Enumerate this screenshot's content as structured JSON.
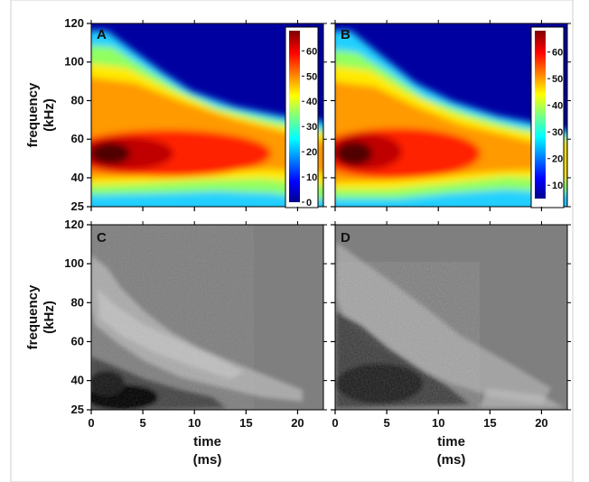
{
  "chart_data": [
    {
      "type": "heatmap",
      "panel_label": "A",
      "colormap": "jet",
      "x": [
        0,
        22.5
      ],
      "ylim": [
        25,
        120
      ],
      "xticks": [
        "0",
        "5",
        "10",
        "15",
        "20"
      ],
      "yticks": [
        "25",
        "40",
        "60",
        "80",
        "100",
        "120"
      ],
      "ylabel": [
        "frequency",
        "(kHz)"
      ],
      "colorbar": {
        "range": [
          0,
          68
        ],
        "ticks": [
          "0",
          "10",
          "20",
          "30",
          "40",
          "50",
          "60"
        ]
      },
      "peak": {
        "time": 2,
        "frequency": 47,
        "value": 68
      },
      "upper_boundary_kHz": [
        [
          0,
          118
        ],
        [
          5,
          100
        ],
        [
          10,
          82
        ],
        [
          15,
          73
        ],
        [
          20,
          66
        ],
        [
          22.5,
          62
        ]
      ]
    },
    {
      "type": "heatmap",
      "panel_label": "B",
      "colormap": "jet",
      "x": [
        0,
        22.5
      ],
      "ylim": [
        25,
        120
      ],
      "xticks": [
        "0",
        "5",
        "10",
        "15",
        "20"
      ],
      "yticks": [
        "25",
        "40",
        "60",
        "80",
        "100",
        "120"
      ],
      "colorbar": {
        "range": [
          5,
          68
        ],
        "ticks": [
          "10",
          "20",
          "30",
          "40",
          "50",
          "60"
        ]
      },
      "peak": {
        "time": 1.5,
        "frequency": 47,
        "value": 68
      },
      "upper_boundary_kHz": [
        [
          0,
          117
        ],
        [
          5,
          95
        ],
        [
          10,
          78
        ],
        [
          15,
          66
        ],
        [
          20,
          58
        ],
        [
          22.5,
          55
        ]
      ]
    },
    {
      "type": "heatmap",
      "panel_label": "C",
      "colormap": "gray",
      "x": [
        0,
        22.5
      ],
      "ylim": [
        25,
        120
      ],
      "xticks": [
        "0",
        "5",
        "10",
        "15",
        "20"
      ],
      "yticks": [
        "25",
        "40",
        "60",
        "80",
        "100",
        "120"
      ],
      "xlabel": [
        "time",
        "(ms)"
      ],
      "ylabel": [
        "frequency",
        "(kHz)"
      ],
      "dark_region": {
        "time": 2.5,
        "frequency": 28
      },
      "light_band": [
        [
          1,
          85
        ],
        [
          7,
          50
        ],
        [
          13,
          38
        ],
        [
          17,
          32
        ]
      ]
    },
    {
      "type": "heatmap",
      "panel_label": "D",
      "colormap": "gray",
      "x": [
        0,
        22.5
      ],
      "ylim": [
        25,
        120
      ],
      "xticks": [
        "0",
        "5",
        "10",
        "15",
        "20"
      ],
      "yticks": [
        "25",
        "40",
        "60",
        "80",
        "100",
        "120"
      ],
      "xlabel": [
        "time",
        "(ms)"
      ],
      "dark_region": {
        "time": 3,
        "frequency": 35
      },
      "light_band": [
        [
          2,
          80
        ],
        [
          8,
          55
        ],
        [
          14,
          38
        ],
        [
          20,
          30
        ]
      ]
    }
  ]
}
